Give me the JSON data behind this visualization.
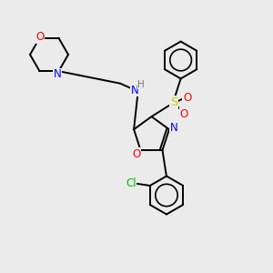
{
  "bg_color": "#ebebeb",
  "atom_colors": {
    "O": "#ff0000",
    "N": "#0000ff",
    "S": "#cccc00",
    "Cl": "#00bb00",
    "H": "#777777",
    "C": "#000000"
  }
}
